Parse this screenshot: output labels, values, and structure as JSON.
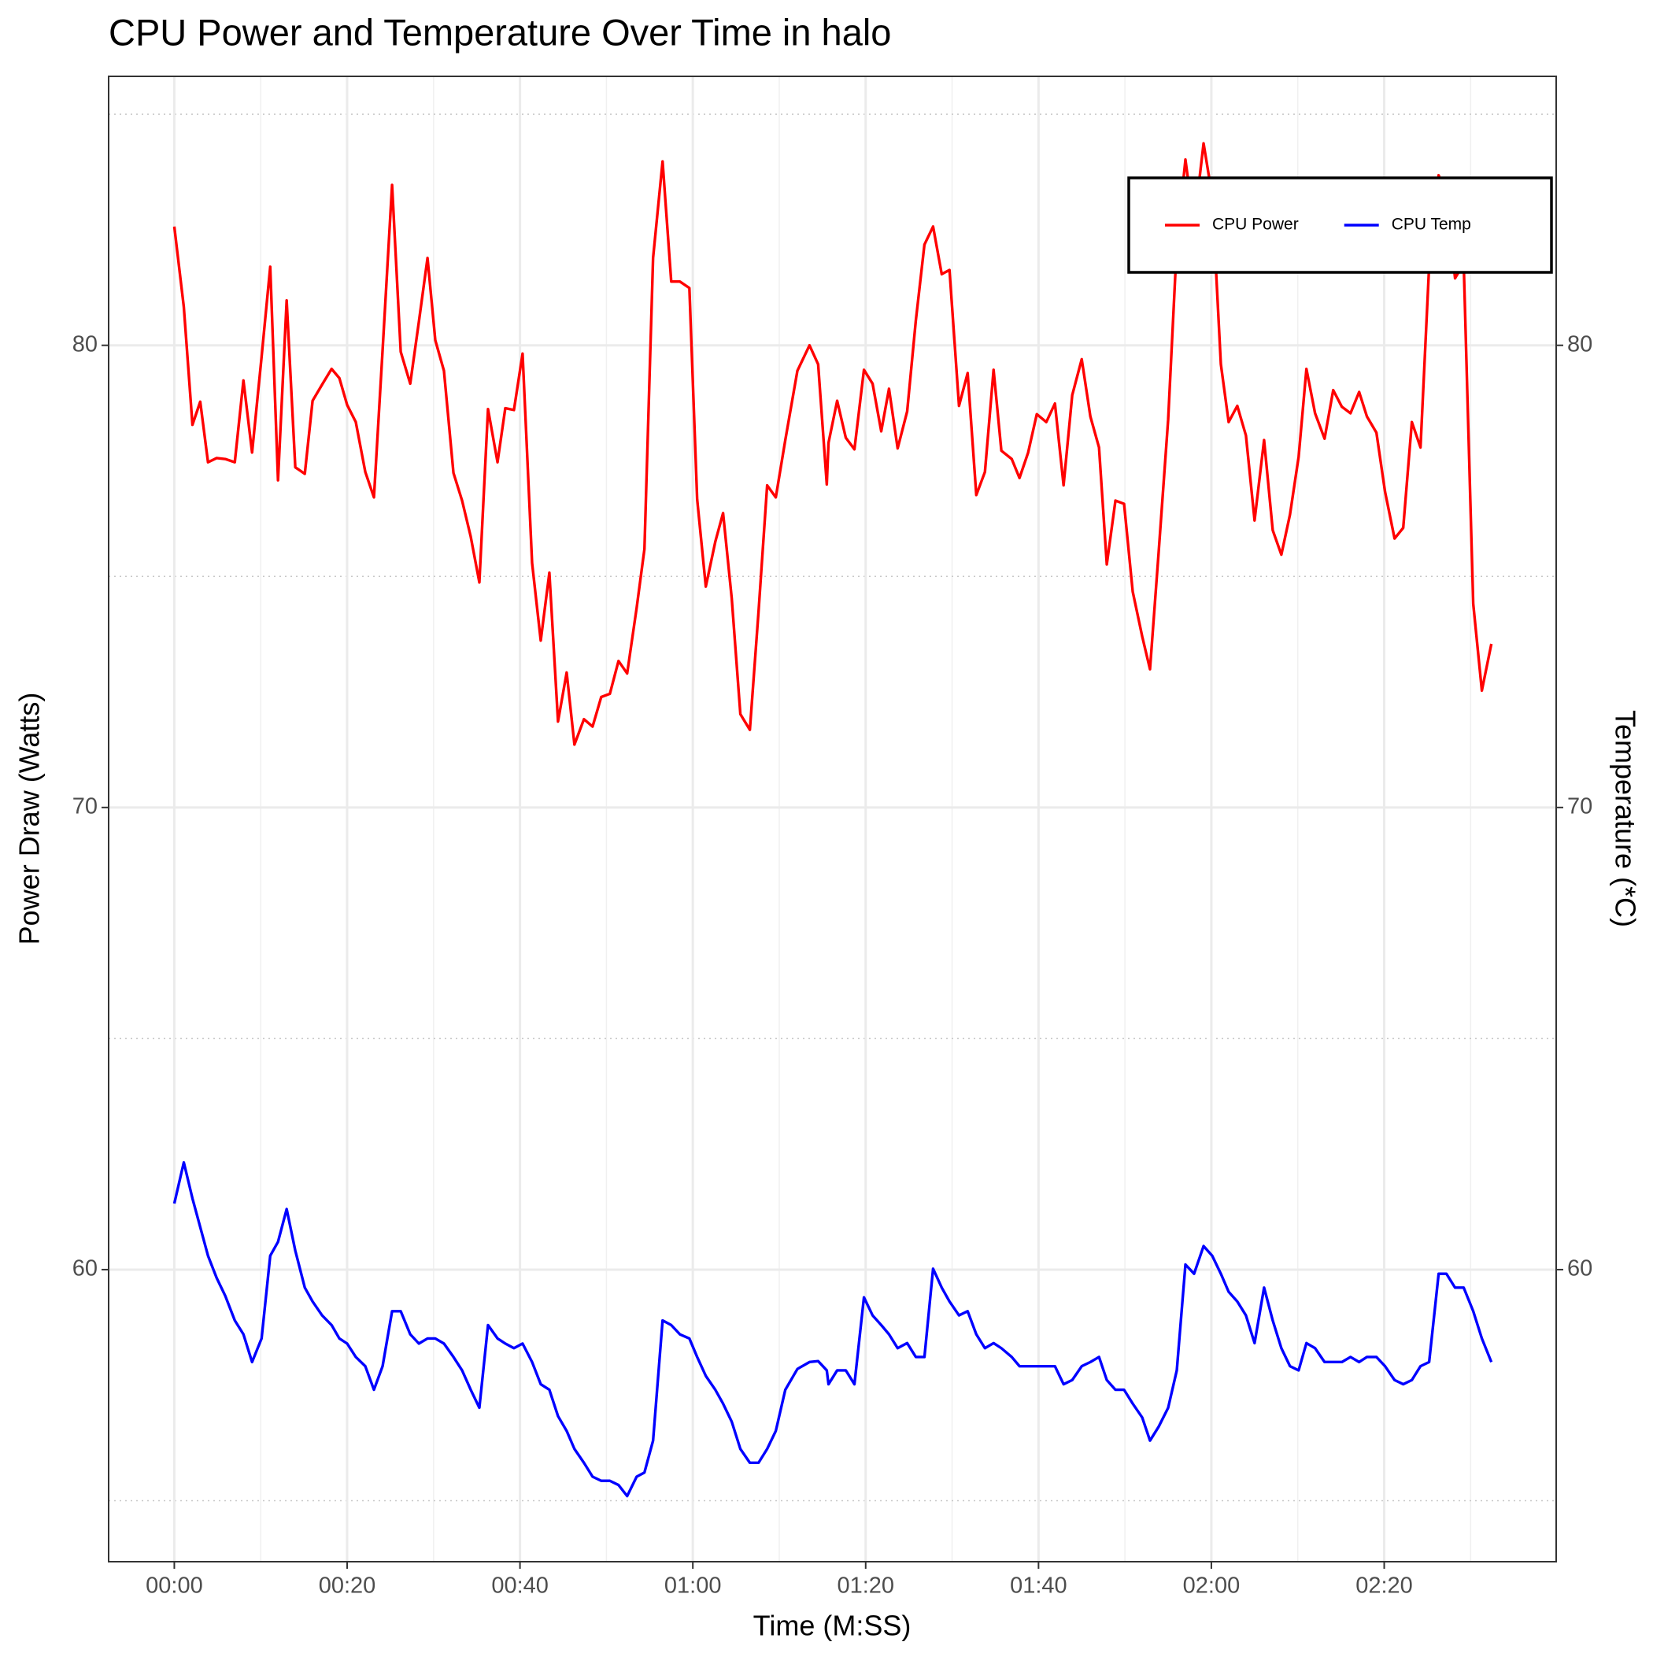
{
  "chart_data": {
    "type": "line",
    "title": "CPU Power and Temperature Over Time in halo",
    "x_label": "Time (M:SS)",
    "y_label": "Power Draw (Watts)",
    "y2_label": "Temperature (*C)",
    "x": [
      0,
      1.1,
      2.1,
      3.0,
      3.9,
      4.9,
      5.9,
      7.0,
      8.0,
      9.0,
      10.1,
      11.1,
      12.0,
      13.0,
      14.0,
      15.1,
      16.0,
      17.1,
      18.2,
      19.1,
      20.0,
      21.0,
      22.1,
      23.1,
      24.1,
      25.2,
      26.2,
      27.3,
      28.3,
      29.3,
      30.2,
      31.2,
      32.3,
      33.3,
      34.3,
      35.3,
      36.3,
      37.4,
      38.3,
      39.3,
      40.3,
      41.4,
      42.4,
      43.4,
      44.4,
      45.4,
      46.3,
      47.4,
      48.4,
      49.4,
      50.4,
      51.4,
      52.4,
      53.5,
      54.4,
      55.4,
      56.5,
      57.5,
      58.5,
      59.6,
      60.5,
      61.5,
      62.6,
      63.5,
      64.5,
      65.5,
      66.6,
      67.6,
      68.6,
      69.6,
      70.7,
      72.1,
      73.5,
      74.5,
      75.5,
      75.7,
      76.7,
      77.7,
      78.7,
      79.8,
      80.8,
      81.8,
      82.7,
      83.7,
      84.8,
      85.8,
      86.8,
      87.8,
      88.8,
      89.7,
      90.8,
      91.8,
      92.8,
      93.8,
      94.8,
      95.7,
      96.9,
      97.8,
      98.8,
      99.8,
      100.9,
      101.9,
      102.9,
      103.9,
      105.0,
      106.0,
      107.0,
      107.9,
      108.9,
      109.9,
      110.9,
      112.0,
      112.9,
      113.9,
      115.0,
      116.0,
      117.0,
      118.0,
      119.1,
      120.1,
      121.1,
      122.0,
      123.0,
      124.0,
      125.0,
      126.1,
      127.1,
      128.1,
      129.1,
      130.1,
      131.0,
      132.0,
      133.1,
      134.1,
      135.1,
      136.1,
      137.1,
      138.0,
      139.1,
      140.1,
      141.2,
      142.2,
      143.2,
      144.2,
      145.2,
      146.3,
      147.2,
      148.2,
      149.2,
      150.3,
      151.3,
      152.4
    ],
    "series": [
      {
        "name": "CPU Power",
        "color": "#ff0000",
        "axis": "y",
        "values": [
          82.57,
          80.83,
          78.28,
          78.78,
          77.47,
          77.56,
          77.54,
          77.47,
          79.24,
          77.68,
          79.75,
          81.7,
          77.08,
          80.97,
          77.36,
          77.22,
          78.8,
          79.15,
          79.49,
          79.29,
          78.71,
          78.34,
          77.26,
          76.71,
          79.89,
          83.47,
          79.86,
          79.17,
          80.51,
          81.89,
          80.11,
          79.45,
          77.24,
          76.64,
          75.86,
          74.87,
          78.62,
          77.47,
          78.64,
          78.6,
          79.82,
          75.29,
          73.61,
          75.08,
          71.86,
          72.92,
          71.36,
          71.91,
          71.75,
          72.39,
          72.46,
          73.17,
          72.9,
          74.32,
          75.59,
          81.89,
          83.98,
          81.38,
          81.38,
          81.24,
          76.67,
          74.78,
          75.75,
          76.37,
          74.53,
          72.02,
          71.68,
          74.23,
          76.97,
          76.71,
          77.95,
          79.45,
          80.0,
          79.59,
          76.99,
          77.89,
          78.8,
          78.0,
          77.75,
          79.47,
          79.17,
          78.14,
          79.06,
          77.77,
          78.57,
          80.53,
          82.18,
          82.57,
          81.54,
          81.63,
          78.69,
          79.4,
          76.76,
          77.26,
          79.47,
          77.72,
          77.54,
          77.13,
          77.68,
          78.51,
          78.34,
          78.74,
          76.97,
          78.92,
          79.7,
          78.46,
          77.79,
          75.26,
          76.64,
          76.57,
          74.67,
          73.7,
          72.99,
          75.52,
          78.39,
          82.18,
          84.02,
          82.6,
          84.37,
          83.22,
          79.59,
          78.34,
          78.69,
          78.05,
          76.21,
          77.95,
          76.0,
          75.47,
          76.34,
          77.59,
          79.49,
          78.53,
          77.98,
          79.03,
          78.67,
          78.53,
          78.99,
          78.46,
          78.11,
          76.83,
          75.82,
          76.05,
          78.34,
          77.79,
          81.72,
          83.68,
          83.22,
          81.45,
          81.77,
          74.41,
          72.53,
          73.54
        ]
      },
      {
        "name": "CPU Temp",
        "color": "#0000ff",
        "axis": "y2",
        "values": [
          61.43,
          62.32,
          61.54,
          60.92,
          60.3,
          59.82,
          59.43,
          58.9,
          58.6,
          58.0,
          58.51,
          60.3,
          60.6,
          61.31,
          60.41,
          59.61,
          59.31,
          59.01,
          58.8,
          58.51,
          58.4,
          58.11,
          57.91,
          57.4,
          57.91,
          59.1,
          59.1,
          58.6,
          58.4,
          58.51,
          58.51,
          58.4,
          58.11,
          57.82,
          57.4,
          57.01,
          58.8,
          58.51,
          58.4,
          58.3,
          58.4,
          58.0,
          57.52,
          57.4,
          56.83,
          56.51,
          56.12,
          55.82,
          55.52,
          55.43,
          55.43,
          55.34,
          55.1,
          55.52,
          55.61,
          56.3,
          58.9,
          58.8,
          58.6,
          58.51,
          58.11,
          57.7,
          57.4,
          57.1,
          56.71,
          56.12,
          55.82,
          55.82,
          56.12,
          56.51,
          57.4,
          57.85,
          58.0,
          58.02,
          57.82,
          57.52,
          57.82,
          57.82,
          57.52,
          59.4,
          59.01,
          58.8,
          58.6,
          58.3,
          58.41,
          58.11,
          58.11,
          60.02,
          59.61,
          59.31,
          59.01,
          59.1,
          58.6,
          58.3,
          58.41,
          58.3,
          58.11,
          57.91,
          57.91,
          57.91,
          57.91,
          57.91,
          57.52,
          57.61,
          57.91,
          58.0,
          58.11,
          57.61,
          57.4,
          57.4,
          57.1,
          56.8,
          56.3,
          56.6,
          57.01,
          57.82,
          60.11,
          59.91,
          60.51,
          60.3,
          59.91,
          59.52,
          59.31,
          59.01,
          58.41,
          59.61,
          58.9,
          58.3,
          57.91,
          57.82,
          58.41,
          58.3,
          58.0,
          58.0,
          58.0,
          58.11,
          58.0,
          58.11,
          58.11,
          57.91,
          57.61,
          57.52,
          57.61,
          57.91,
          58.0,
          59.91,
          59.91,
          59.61,
          59.61,
          59.1,
          58.51,
          58.0
        ]
      }
    ],
    "xlim": [
      -7.6,
      159.9
    ],
    "xticks": [
      {
        "value": 0,
        "label": "00:00"
      },
      {
        "value": 20,
        "label": "00:20"
      },
      {
        "value": 40,
        "label": "00:40"
      },
      {
        "value": 60,
        "label": "01:00"
      },
      {
        "value": 80,
        "label": "01:20"
      },
      {
        "value": 100,
        "label": "01:40"
      },
      {
        "value": 120,
        "label": "02:00"
      },
      {
        "value": 140,
        "label": "02:20"
      }
    ],
    "minor_xticks": [
      10,
      30,
      50,
      70,
      90,
      110,
      130,
      150
    ],
    "ylim": [
      53.68,
      85.82
    ],
    "yticks": [
      60,
      70,
      80
    ],
    "minor_yticks": [
      55,
      65,
      75,
      85
    ],
    "y2lim": [
      53.68,
      85.82
    ],
    "y2ticks": [
      60,
      70,
      80
    ],
    "grid": true,
    "legend": "top-right"
  }
}
